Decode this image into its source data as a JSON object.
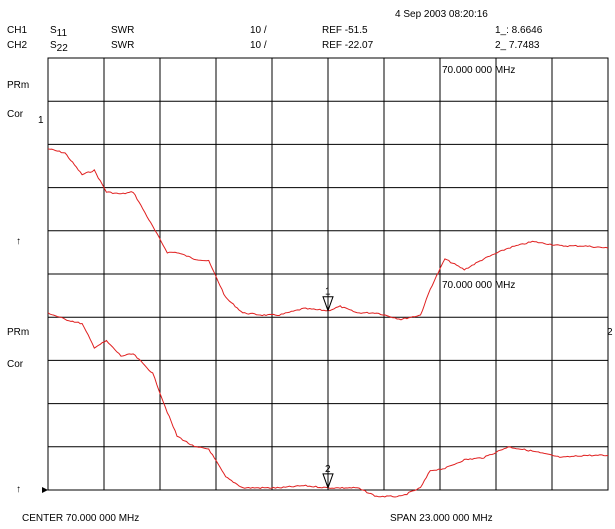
{
  "header": {
    "datetime": "4 Sep 2003  08:20:16",
    "ch1": {
      "label": "CH1",
      "param": "S",
      "param_sub": "11",
      "format": "SWR",
      "scale": "10 /",
      "ref": "REF -51.5",
      "marker": "1_: 8.6646"
    },
    "ch2": {
      "label": "CH2",
      "param": "S",
      "param_sub": "22",
      "format": "SWR",
      "scale": "10 /",
      "ref": "REF -22.07",
      "marker": "2_  7.7483"
    }
  },
  "side_labels": {
    "prm1": "PRm",
    "cor1": "Cor",
    "ref_arrow1": "↑",
    "ref_num1": "1",
    "prm2": "PRm",
    "cor2": "Cor",
    "ref_arrow2": "↑",
    "ref_num2": "2"
  },
  "marker_readouts": {
    "ch1": "70.000 000 MHz",
    "ch2": "70.000 000 MHz"
  },
  "markers": {
    "m1": "1",
    "m2": "2"
  },
  "footer": {
    "center": "CENTER  70.000 000 MHz",
    "span": "SPAN  23.000 000 MHz"
  },
  "colors": {
    "trace": "#e02020",
    "grid": "#000000"
  },
  "chart_data": {
    "type": "line",
    "grid": true,
    "x_divisions": 10,
    "y_divisions": 10,
    "center_mhz": 70.0,
    "span_mhz": 23.0,
    "x_unit": "MHz",
    "y_unit": "divisions",
    "series": [
      {
        "x": [
          58.5,
          59.2,
          59.9,
          60.4,
          60.9,
          61.5,
          62.0,
          62.8,
          63.4,
          63.8,
          64.5,
          65.1,
          65.8,
          66.5,
          67.3,
          68.0,
          69.0,
          70.0,
          70.5,
          71.2,
          72.0,
          73.0,
          73.8,
          74.2,
          74.8,
          75.6,
          76.4,
          77.4,
          78.4,
          79.6,
          80.5,
          81.5
        ],
        "y": [
          7.9,
          7.8,
          7.3,
          7.4,
          6.9,
          6.85,
          6.9,
          6.1,
          5.5,
          5.5,
          5.35,
          5.3,
          4.45,
          4.1,
          4.05,
          4.05,
          4.2,
          4.15,
          4.25,
          4.1,
          4.1,
          3.95,
          4.05,
          4.65,
          5.35,
          5.1,
          5.35,
          5.6,
          5.75,
          5.65,
          5.65,
          5.6
        ]
      },
      {
        "x": [
          58.5,
          59.2,
          59.9,
          60.4,
          60.9,
          61.5,
          62.0,
          62.8,
          63.4,
          63.8,
          64.5,
          65.1,
          65.8,
          66.5,
          67.3,
          68.0,
          69.0,
          70.0,
          70.5,
          71.2,
          72.0,
          73.0,
          73.8,
          74.2,
          74.8,
          75.6,
          76.4,
          77.4,
          78.4,
          79.6,
          80.5,
          81.5
        ],
        "y": [
          4.1,
          3.95,
          3.85,
          3.3,
          3.45,
          3.1,
          3.15,
          2.7,
          1.8,
          1.25,
          1.0,
          0.95,
          0.3,
          0.05,
          0.05,
          0.05,
          0.1,
          0.05,
          0.05,
          0.05,
          -0.15,
          -0.15,
          0.05,
          0.45,
          0.5,
          0.7,
          0.75,
          1.0,
          0.9,
          0.75,
          0.8,
          0.8
        ]
      }
    ]
  }
}
